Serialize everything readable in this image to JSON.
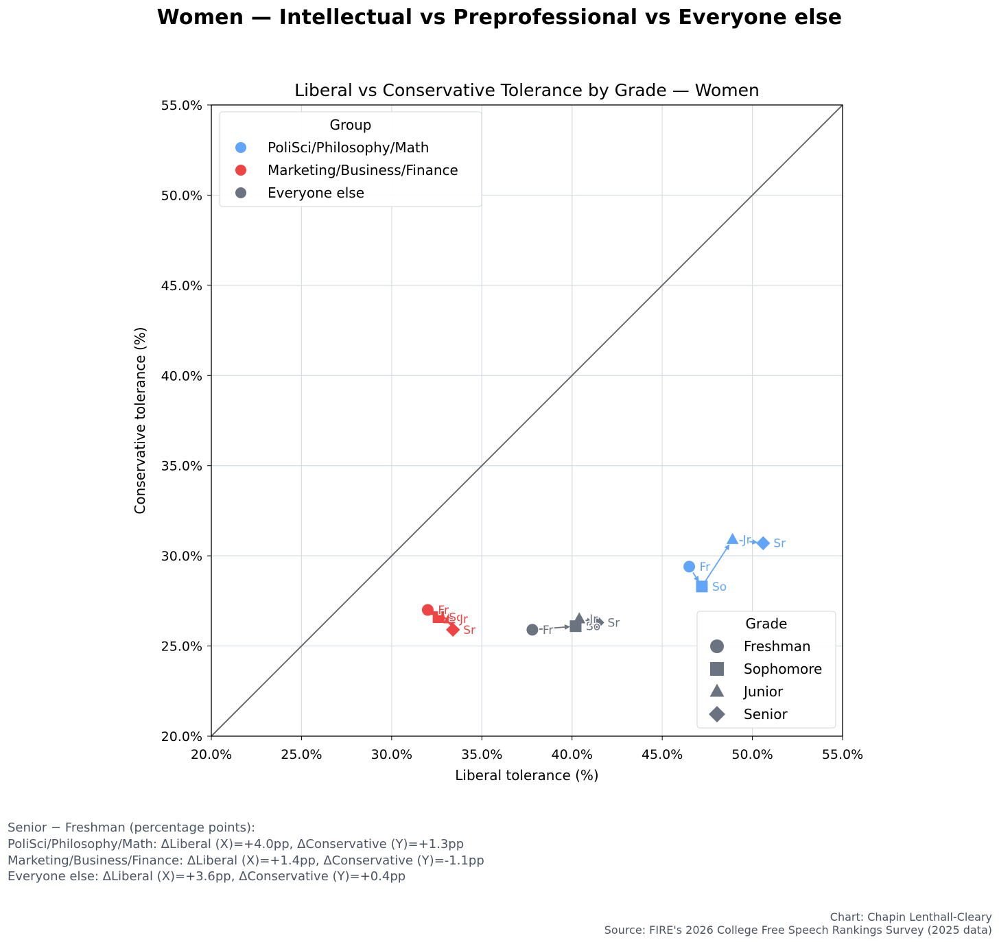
{
  "suptitle": "Women — Intellectual vs Preprofessional vs Everyone else",
  "chart_data": {
    "type": "scatter",
    "title": "Liberal vs Conservative Tolerance by Grade — Women",
    "xlabel": "Liberal tolerance (%)",
    "ylabel": "Conservative tolerance (%)",
    "xlim": [
      20,
      55
    ],
    "ylim": [
      20,
      55
    ],
    "ticks": [
      20,
      25,
      30,
      35,
      40,
      45,
      50,
      55
    ],
    "tick_suffix": "%",
    "grid": true,
    "reference_line": "y = x",
    "grades": [
      "Fr",
      "So",
      "Jr",
      "Sr"
    ],
    "series": [
      {
        "name": "PoliSci/Philosophy/Math",
        "color": "#60a5fa",
        "points": [
          {
            "grade": "Fr",
            "x": 46.5,
            "y": 29.4
          },
          {
            "grade": "So",
            "x": 47.2,
            "y": 28.3
          },
          {
            "grade": "Jr",
            "x": 48.9,
            "y": 30.9
          },
          {
            "grade": "Sr",
            "x": 50.6,
            "y": 30.7
          }
        ]
      },
      {
        "name": "Marketing/Business/Finance",
        "color": "#ef4444",
        "points": [
          {
            "grade": "Fr",
            "x": 32.0,
            "y": 27.0
          },
          {
            "grade": "So",
            "x": 32.6,
            "y": 26.6
          },
          {
            "grade": "Jr",
            "x": 33.2,
            "y": 26.5
          },
          {
            "grade": "Sr",
            "x": 33.4,
            "y": 25.9
          }
        ]
      },
      {
        "name": "Everyone else",
        "color": "#6b7280",
        "points": [
          {
            "grade": "Fr",
            "x": 37.8,
            "y": 25.9
          },
          {
            "grade": "So",
            "x": 40.2,
            "y": 26.1
          },
          {
            "grade": "Jr",
            "x": 40.4,
            "y": 26.5
          },
          {
            "grade": "Sr",
            "x": 41.4,
            "y": 26.3
          }
        ]
      }
    ],
    "legend_group": {
      "title": "Group",
      "position": "top-left",
      "items": [
        "PoliSci/Philosophy/Math",
        "Marketing/Business/Finance",
        "Everyone else"
      ]
    },
    "legend_grade": {
      "title": "Grade",
      "position": "bottom-right",
      "color": "#6b7280",
      "items": [
        {
          "label": "Freshman",
          "marker": "circle"
        },
        {
          "label": "Sophomore",
          "marker": "square"
        },
        {
          "label": "Junior",
          "marker": "triangle"
        },
        {
          "label": "Senior",
          "marker": "diamond"
        }
      ]
    }
  },
  "summary": {
    "heading": "Senior − Freshman (percentage points):",
    "lines": [
      "PoliSci/Philosophy/Math: ΔLiberal (X)=+4.0pp, ΔConservative (Y)=+1.3pp",
      "Marketing/Business/Finance: ΔLiberal (X)=+1.4pp, ΔConservative (Y)=-1.1pp",
      "Everyone else: ΔLiberal (X)=+3.6pp, ΔConservative (Y)=+0.4pp"
    ]
  },
  "credit": {
    "author": "Chart: Chapin Lenthall-Cleary",
    "source": "Source: FIRE's 2026 College Free Speech Rankings Survey (2025 data)"
  }
}
